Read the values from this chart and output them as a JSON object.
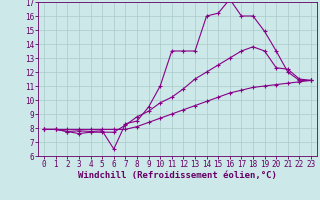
{
  "xlabel": "Windchill (Refroidissement éolien,°C)",
  "bg_color": "#cce8e8",
  "line_color": "#880088",
  "grid_color": "#aacccc",
  "xlim": [
    -0.5,
    23.5
  ],
  "ylim": [
    6,
    17
  ],
  "xticks": [
    0,
    1,
    2,
    3,
    4,
    5,
    6,
    7,
    8,
    9,
    10,
    11,
    12,
    13,
    14,
    15,
    16,
    17,
    18,
    19,
    20,
    21,
    22,
    23
  ],
  "yticks": [
    6,
    7,
    8,
    9,
    10,
    11,
    12,
    13,
    14,
    15,
    16,
    17
  ],
  "line1_x": [
    0,
    1,
    2,
    3,
    4,
    5,
    6,
    7,
    8,
    9,
    10,
    11,
    12,
    13,
    14,
    15,
    16,
    17,
    18,
    19,
    20,
    21,
    22,
    23
  ],
  "line1_y": [
    7.9,
    7.9,
    7.75,
    7.8,
    7.75,
    7.8,
    6.5,
    8.3,
    8.5,
    9.5,
    11.0,
    13.5,
    13.5,
    13.5,
    16.0,
    16.2,
    17.2,
    16.0,
    16.0,
    14.9,
    13.5,
    12.0,
    11.4,
    11.4
  ],
  "line2_x": [
    0,
    1,
    2,
    3,
    4,
    5,
    6,
    7,
    8,
    9,
    10,
    11,
    12,
    13,
    14,
    15,
    16,
    17,
    18,
    19,
    20,
    21,
    22,
    23
  ],
  "line2_y": [
    7.9,
    7.9,
    7.75,
    7.6,
    7.7,
    7.7,
    7.7,
    8.2,
    8.8,
    9.2,
    9.8,
    10.2,
    10.8,
    11.5,
    12.0,
    12.5,
    13.0,
    13.5,
    13.8,
    13.5,
    12.3,
    12.2,
    11.5,
    11.4
  ],
  "line3_x": [
    0,
    1,
    2,
    3,
    4,
    5,
    6,
    7,
    8,
    9,
    10,
    11,
    12,
    13,
    14,
    15,
    16,
    17,
    18,
    19,
    20,
    21,
    22,
    23
  ],
  "line3_y": [
    7.9,
    7.9,
    7.9,
    7.9,
    7.9,
    7.9,
    7.9,
    7.9,
    8.1,
    8.4,
    8.7,
    9.0,
    9.3,
    9.6,
    9.9,
    10.2,
    10.5,
    10.7,
    10.9,
    11.0,
    11.1,
    11.2,
    11.3,
    11.4
  ],
  "markersize": 3,
  "linewidth": 0.8,
  "tick_fontsize": 5.5,
  "xlabel_fontsize": 6.5
}
